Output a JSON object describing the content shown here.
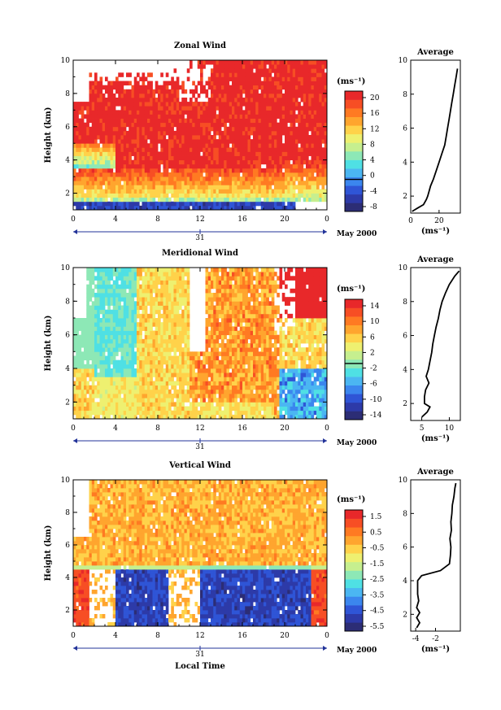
{
  "figure": {
    "date_label": "31",
    "month_label": "May 2000",
    "bottom_xlabel": "Local Time",
    "ylabel": "Height (km)",
    "unit_label": "(ms⁻¹)",
    "avg_title": "Average",
    "avg_xunit": "(ms⁻¹)"
  },
  "colors": {
    "colormap": [
      "#2c2d75",
      "#2d3aa8",
      "#2f55d6",
      "#3b86ee",
      "#4bb6f2",
      "#4fe0e4",
      "#8de8b6",
      "#c6ef8f",
      "#eef070",
      "#ffd24a",
      "#ffa52e",
      "#ff7a22",
      "#f74e24",
      "#e8282a"
    ]
  },
  "chart_data": [
    {
      "type": "heatmap",
      "title": "Zonal Wind",
      "xlabel": "",
      "ylabel": "Height (km)",
      "xlim": [
        0,
        24
      ],
      "ylim": [
        1,
        10
      ],
      "xticks": [
        "0",
        "4",
        "8",
        "12",
        "16",
        "20",
        "0"
      ],
      "yticks": [
        "2",
        "4",
        "6",
        "8",
        "10"
      ],
      "colorbar": {
        "unit": "(ms⁻¹)",
        "labels": [
          "20",
          "16",
          "12",
          "8",
          "4",
          "0",
          "-4",
          "-8"
        ],
        "min": -8,
        "max": 22,
        "zero_line": 0
      },
      "average_profile": {
        "title": "Average",
        "xlabel": "(ms⁻¹)",
        "xlim": [
          0,
          35
        ],
        "xticks": [
          "0",
          "20"
        ],
        "heights": [
          1.1,
          1.3,
          1.5,
          1.8,
          2.0,
          2.3,
          2.6,
          3.0,
          3.5,
          4.0,
          4.5,
          5.0,
          5.5,
          6.0,
          6.5,
          7.0,
          7.5,
          8.0,
          8.5,
          9.0,
          9.5
        ],
        "values": [
          1,
          5,
          9,
          11,
          12,
          13,
          14,
          16,
          18,
          20,
          22,
          24,
          25,
          26,
          27,
          28,
          29,
          30,
          31,
          32,
          33
        ]
      }
    },
    {
      "type": "heatmap",
      "title": "Meridional Wind",
      "xlabel": "",
      "ylabel": "Height (km)",
      "xlim": [
        0,
        24
      ],
      "ylim": [
        1,
        10
      ],
      "xticks": [
        "0",
        "4",
        "8",
        "12",
        "16",
        "20",
        "0"
      ],
      "yticks": [
        "2",
        "4",
        "6",
        "8",
        "10"
      ],
      "colorbar": {
        "unit": "(ms⁻¹)",
        "labels": [
          "14",
          "10",
          "6",
          "2",
          "-2",
          "-6",
          "-10",
          "-14"
        ],
        "min": -14,
        "max": 16,
        "zero_line": 0
      },
      "average_profile": {
        "title": "Average",
        "xlabel": "(ms⁻¹)",
        "xlim": [
          3,
          12
        ],
        "xticks": [
          "5",
          "10"
        ],
        "heights": [
          1.2,
          1.5,
          1.8,
          2.0,
          2.4,
          2.8,
          3.2,
          3.6,
          4.0,
          4.5,
          5.0,
          5.5,
          6.0,
          6.5,
          7.0,
          7.5,
          8.0,
          8.5,
          9.0,
          9.5,
          9.8
        ],
        "values": [
          5,
          6,
          6.5,
          5.5,
          5.5,
          5.7,
          6.3,
          5.8,
          6.2,
          6.5,
          6.8,
          7.0,
          7.3,
          7.6,
          8.0,
          8.3,
          8.7,
          9.3,
          10.0,
          11.0,
          11.8
        ]
      }
    },
    {
      "type": "heatmap",
      "title": "Vertical Wind",
      "xlabel": "Local Time",
      "ylabel": "Height (km)",
      "xlim": [
        0,
        24
      ],
      "ylim": [
        1,
        10
      ],
      "xticks": [
        "0",
        "4",
        "8",
        "12",
        "16",
        "20",
        "0"
      ],
      "yticks": [
        "2",
        "4",
        "6",
        "8",
        "10"
      ],
      "colorbar": {
        "unit": "(ms⁻¹)",
        "labels": [
          "1.5",
          "0.5",
          "-0.5",
          "-1.5",
          "-2.5",
          "-3.5",
          "-4.5",
          "-5.5"
        ],
        "min": -6.0,
        "max": 2.0
      },
      "average_profile": {
        "title": "Average",
        "xlabel": "(ms⁻¹)",
        "xlim": [
          -4.5,
          0.5
        ],
        "xticks": [
          "-4",
          "-2"
        ],
        "heights": [
          1.2,
          1.5,
          1.8,
          2.1,
          2.4,
          2.8,
          3.2,
          3.6,
          4.0,
          4.3,
          4.6,
          5.0,
          5.5,
          6.0,
          6.5,
          7.0,
          7.5,
          8.0,
          8.5,
          9.0,
          9.5,
          9.8
        ],
        "values": [
          -3.9,
          -3.6,
          -3.9,
          -3.6,
          -3.9,
          -3.7,
          -3.8,
          -3.8,
          -3.8,
          -3.4,
          -1.5,
          -0.6,
          -0.5,
          -0.45,
          -0.55,
          -0.4,
          -0.45,
          -0.35,
          -0.3,
          -0.15,
          -0.05,
          0.05
        ]
      }
    }
  ]
}
